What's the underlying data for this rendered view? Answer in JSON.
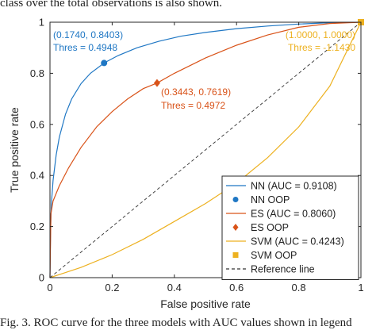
{
  "caption_top": "class over the total observations is also shown.",
  "caption_bottom": "Fig. 3.   ROC curve for the three models with AUC values shown in legend",
  "colors": {
    "nn": "#1f77c4",
    "es": "#d95319",
    "svm": "#edb120",
    "ref": "#333333",
    "axis": "#262626"
  },
  "chart_data": {
    "type": "line",
    "xlabel": "False positive rate",
    "ylabel": "True positive rate",
    "xlim": [
      0,
      1
    ],
    "ylim": [
      0,
      1
    ],
    "xticks": [
      "0",
      "0.2",
      "0.4",
      "0.6",
      "0.8",
      "1"
    ],
    "yticks": [
      "0",
      "0.2",
      "0.4",
      "0.6",
      "0.8",
      "1"
    ],
    "grid": false,
    "legend_position": "bottom-right",
    "series": [
      {
        "name": "NN (AUC = 0.9108)",
        "key": "nn",
        "x": [
          0,
          0.002,
          0.005,
          0.01,
          0.02,
          0.03,
          0.05,
          0.07,
          0.1,
          0.13,
          0.174,
          0.22,
          0.28,
          0.35,
          0.42,
          0.5,
          0.6,
          0.7,
          0.8,
          0.9,
          1.0
        ],
        "y": [
          0,
          0.2,
          0.3,
          0.38,
          0.48,
          0.55,
          0.64,
          0.7,
          0.76,
          0.8,
          0.8403,
          0.87,
          0.9,
          0.925,
          0.945,
          0.96,
          0.975,
          0.985,
          0.993,
          0.998,
          1.0
        ]
      },
      {
        "name": "ES (AUC = 0.8060)",
        "key": "es",
        "x": [
          0,
          0.003,
          0.01,
          0.03,
          0.06,
          0.1,
          0.15,
          0.2,
          0.25,
          0.3,
          0.3443,
          0.4,
          0.5,
          0.6,
          0.7,
          0.8,
          0.9,
          1.0
        ],
        "y": [
          0,
          0.25,
          0.3,
          0.36,
          0.43,
          0.51,
          0.59,
          0.65,
          0.7,
          0.74,
          0.7619,
          0.8,
          0.86,
          0.91,
          0.95,
          0.98,
          0.995,
          1.0
        ]
      },
      {
        "name": "SVM (AUC = 0.4243)",
        "key": "svm",
        "x": [
          0,
          0.05,
          0.1,
          0.2,
          0.3,
          0.4,
          0.5,
          0.6,
          0.7,
          0.8,
          0.9,
          1.0
        ],
        "y": [
          0,
          0.02,
          0.04,
          0.09,
          0.15,
          0.22,
          0.29,
          0.37,
          0.47,
          0.59,
          0.75,
          1.0
        ]
      },
      {
        "name": "Reference line",
        "key": "ref",
        "x": [
          0,
          1
        ],
        "y": [
          0,
          1
        ]
      }
    ],
    "points": [
      {
        "name": "NN OOP",
        "key": "nn",
        "marker": "circle",
        "x": 0.174,
        "y": 0.8403,
        "label1": "(0.1740, 0.8403)",
        "label2": "Thres = 0.4948"
      },
      {
        "name": "ES OOP",
        "key": "es",
        "marker": "diamond",
        "x": 0.3443,
        "y": 0.7619,
        "label1": "(0.3443, 0.7619)",
        "label2": "Thres = 0.4972"
      },
      {
        "name": "SVM OOP",
        "key": "svm",
        "marker": "square",
        "x": 1.0,
        "y": 1.0,
        "label1": "(1.0000, 1.0000)",
        "label2": "Thres = -1.1430"
      }
    ],
    "legend": [
      {
        "label": "NN (AUC = 0.9108)",
        "key": "nn",
        "symbol": "line"
      },
      {
        "label": "NN OOP",
        "key": "nn",
        "symbol": "circle"
      },
      {
        "label": "ES (AUC = 0.8060)",
        "key": "es",
        "symbol": "line"
      },
      {
        "label": "ES OOP",
        "key": "es",
        "symbol": "diamond"
      },
      {
        "label": "SVM (AUC = 0.4243)",
        "key": "svm",
        "symbol": "line"
      },
      {
        "label": "SVM OOP",
        "key": "svm",
        "symbol": "square"
      },
      {
        "label": "Reference line",
        "key": "ref",
        "symbol": "dash"
      }
    ]
  }
}
